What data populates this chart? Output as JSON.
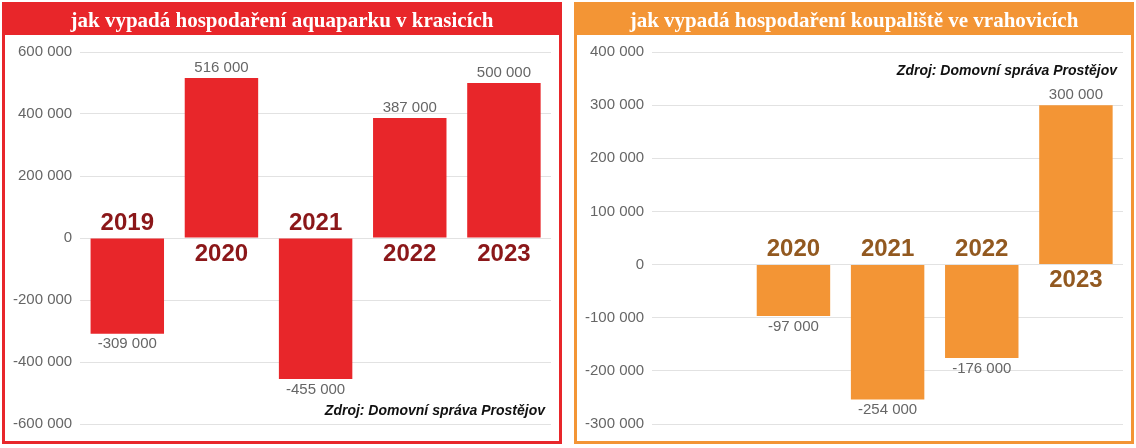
{
  "chart_data": [
    {
      "type": "bar",
      "title": "jak vypadá hospodaření aquaparku v krasicích",
      "categories": [
        "2019",
        "2020",
        "2021",
        "2022",
        "2023"
      ],
      "values": [
        -309000,
        516000,
        -455000,
        387000,
        500000
      ],
      "value_labels": [
        "-309 000",
        "516 000",
        "-455 000",
        "387 000",
        "500 000"
      ],
      "color": "#e8262a",
      "ylim": [
        -600000,
        600000
      ],
      "yticks": [
        {
          "value": -600000,
          "label": "-600 000"
        },
        {
          "value": -400000,
          "label": "-400 000"
        },
        {
          "value": -200000,
          "label": "-200 000"
        },
        0,
        {
          "value": 200000,
          "label": "200 000"
        },
        {
          "value": 400000,
          "label": "400 000"
        },
        {
          "value": 600000,
          "label": "600 000"
        }
      ],
      "grid": "y",
      "annotations": [
        "Zdroj: Domovní správa Prostějov"
      ]
    },
    {
      "type": "bar",
      "title": "jak vypadá hospodaření koupaliště ve vrahovicích",
      "categories": [
        null,
        "2020",
        "2021",
        "2022",
        "2023"
      ],
      "values": [
        null,
        -97000,
        -254000,
        -176000,
        300000
      ],
      "value_labels": [
        null,
        "-97 000",
        "-254 000",
        "-176 000",
        "300 000"
      ],
      "color": "#f39535",
      "ylim": [
        -300000,
        400000
      ],
      "yticks": [
        {
          "value": -300000,
          "label": "-300 000"
        },
        {
          "value": -200000,
          "label": "-200 000"
        },
        {
          "value": -100000,
          "label": "-100 000"
        },
        0,
        {
          "value": 100000,
          "label": "100 000"
        },
        {
          "value": 200000,
          "label": "200 000"
        },
        {
          "value": 300000,
          "label": "300 000"
        },
        {
          "value": 400000,
          "label": "400 000"
        }
      ],
      "grid": "y",
      "annotations": [
        "Zdroj: Domovní správa Prostějov"
      ]
    }
  ]
}
